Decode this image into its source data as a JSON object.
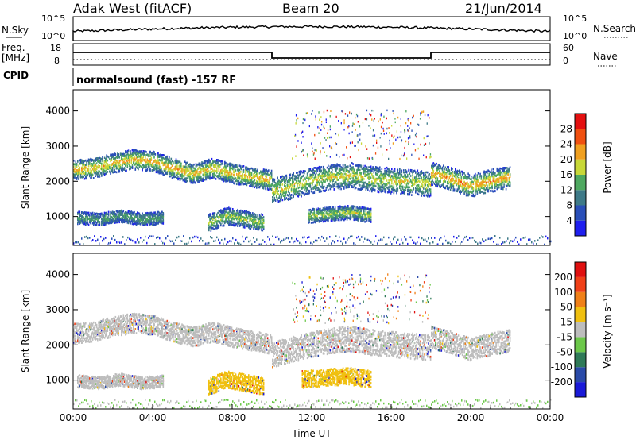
{
  "header": {
    "station": "Adak West (fitACF)",
    "beam": "Beam 20",
    "date": "21/Jun/2014"
  },
  "status_panels": {
    "nsky_label": "N.Sky",
    "nsky_ticks": [
      "10^5",
      "10^0"
    ],
    "nsearch_label": "N.Search",
    "nsearch_ticks": [
      "10^5",
      "10^0"
    ],
    "freq_label": "Freq.",
    "freq_unit": "[MHz]",
    "freq_ticks": [
      "18",
      "8"
    ],
    "nave_label": "Nave",
    "nave_ticks": [
      "60",
      "0"
    ],
    "cpid_label": "CPID",
    "cpid_text": "normalsound (fast) -157 RF"
  },
  "chart_data": [
    {
      "type": "heatmap",
      "name": "power",
      "ylabel": "Slant Range [km]",
      "xlabel": "",
      "ylim": [
        180,
        4600
      ],
      "yticks": [
        "4000",
        "3000",
        "2000",
        "1000"
      ],
      "ytick_values": [
        4000,
        3000,
        2000,
        1000
      ],
      "xlim": [
        0,
        24
      ],
      "colorbar": {
        "label": "Power [dB]",
        "ticks": [
          "28",
          "24",
          "20",
          "16",
          "12",
          "8",
          "4"
        ],
        "colors": [
          "#1f1fef",
          "#2a4fb8",
          "#3e7a88",
          "#4ea860",
          "#c8d838",
          "#f0a020",
          "#f05010",
          "#e41010"
        ]
      },
      "bands": [
        {
          "t0": 0.0,
          "t1": 10.0,
          "center_km": [
            2300,
            2350,
            2500,
            2600,
            2550,
            2350,
            2200,
            2350,
            2200,
            2100,
            2000
          ],
          "width_km": 350,
          "intensity": 0.6
        },
        {
          "t0": 10.0,
          "t1": 18.0,
          "center_km": [
            1700,
            1850,
            2000,
            2100,
            2150,
            2050,
            2000,
            1950,
            1900
          ],
          "width_km": 450,
          "intensity": 0.5
        },
        {
          "t0": 18.0,
          "t1": 22.0,
          "center_km": [
            2200,
            2050,
            1850,
            2000,
            2100
          ],
          "width_km": 400,
          "intensity": 0.65
        },
        {
          "t0": 0.2,
          "t1": 4.5,
          "center_km": [
            950,
            900,
            1000,
            900,
            950
          ],
          "width_km": 220,
          "intensity": 0.3
        },
        {
          "t0": 6.8,
          "t1": 9.6,
          "center_km": [
            800,
            1000,
            900,
            800
          ],
          "width_km": 300,
          "intensity": 0.45
        },
        {
          "t0": 11.8,
          "t1": 15.0,
          "center_km": [
            1000,
            1050,
            1100,
            1000
          ],
          "width_km": 250,
          "intensity": 0.45
        }
      ]
    },
    {
      "type": "heatmap",
      "name": "velocity",
      "ylabel": "Slant Range [km]",
      "xlabel": "Time UT",
      "ylim": [
        180,
        4600
      ],
      "yticks": [
        "4000",
        "3000",
        "2000",
        "1000"
      ],
      "ytick_values": [
        4000,
        3000,
        2000,
        1000
      ],
      "xlim": [
        0,
        24
      ],
      "xticks": [
        "00:00",
        "04:00",
        "08:00",
        "12:00",
        "16:00",
        "20:00",
        "00:00"
      ],
      "xtick_values": [
        0,
        4,
        8,
        12,
        16,
        20,
        24
      ],
      "colorbar": {
        "label": "Velocity [m s⁻¹]",
        "ticks": [
          "200",
          "100",
          "50",
          "15",
          "-15",
          "-50",
          "-100",
          "-200"
        ],
        "colors": [
          "#1a1ad8",
          "#2a4aa8",
          "#2f7a58",
          "#6cc84a",
          "#bdbdbd",
          "#f0c010",
          "#f08018",
          "#f04018",
          "#e01010"
        ]
      },
      "bands": [
        {
          "t0": 0.0,
          "t1": 10.0,
          "center_km": [
            2300,
            2350,
            2500,
            2600,
            2550,
            2350,
            2200,
            2350,
            2200,
            2100,
            2000
          ],
          "width_km": 350,
          "color": "#bdbdbd"
        },
        {
          "t0": 10.0,
          "t1": 18.0,
          "center_km": [
            1700,
            1850,
            2000,
            2100,
            2150,
            2050,
            2000,
            1950,
            1900
          ],
          "width_km": 450,
          "color": "#bdbdbd"
        },
        {
          "t0": 18.0,
          "t1": 22.0,
          "center_km": [
            2200,
            2050,
            1850,
            2000,
            2100
          ],
          "width_km": 400,
          "color": "#bdbdbd"
        },
        {
          "t0": 0.2,
          "t1": 4.5,
          "center_km": [
            950,
            900,
            1000,
            900,
            950
          ],
          "width_km": 220,
          "color": "#bdbdbd"
        },
        {
          "t0": 6.8,
          "t1": 9.6,
          "center_km": [
            800,
            1000,
            900,
            800
          ],
          "width_km": 300,
          "color": "#f0c010"
        },
        {
          "t0": 11.5,
          "t1": 15.0,
          "center_km": [
            1000,
            1050,
            1100,
            1000
          ],
          "width_km": 300,
          "color": "#f0c010"
        }
      ]
    }
  ]
}
